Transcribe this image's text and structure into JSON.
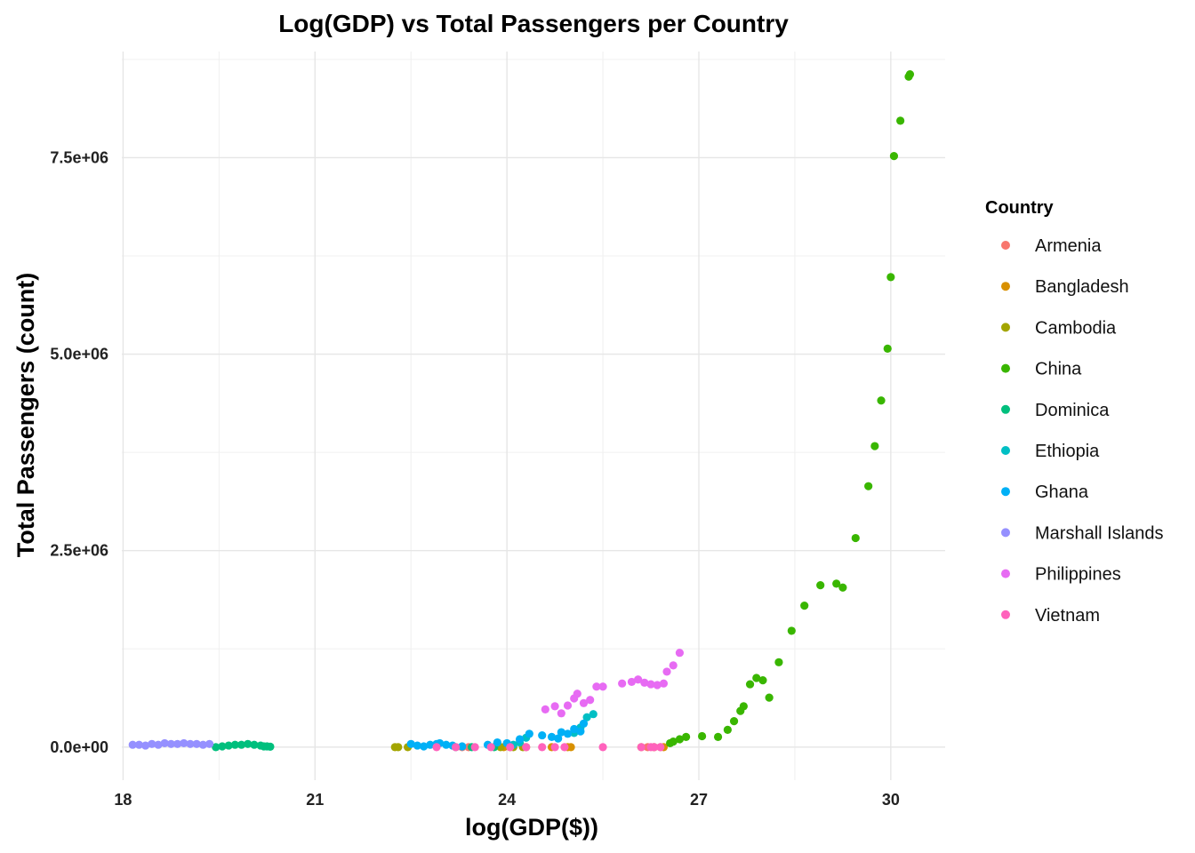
{
  "chart_data": {
    "type": "scatter",
    "title": "Log(GDP) vs Total Passengers per Country",
    "xlabel": "log(GDP($))",
    "ylabel": "Total Passengers (count)",
    "xlim": [
      17.98,
      30.85
    ],
    "ylim": [
      -420000,
      8850000
    ],
    "x_ticks": [
      18,
      21,
      24,
      27,
      30
    ],
    "x_tick_labels": [
      "18",
      "21",
      "24",
      "27",
      "30"
    ],
    "y_ticks": [
      0,
      2500000,
      5000000,
      7500000
    ],
    "y_tick_labels": [
      "0.0e+00",
      "2.5e+06",
      "5.0e+06",
      "7.5e+06"
    ],
    "grid": true,
    "legend": {
      "title": "Country",
      "position": "right"
    },
    "series": [
      {
        "name": "Armenia",
        "color": "#F8766D",
        "points": [
          [
            23.3,
            0
          ],
          [
            23.4,
            0
          ],
          [
            26.2,
            0
          ],
          [
            26.3,
            0
          ],
          [
            26.4,
            0
          ]
        ]
      },
      {
        "name": "Bangladesh",
        "color": "#D89000",
        "points": [
          [
            23.95,
            0
          ],
          [
            24.3,
            0
          ],
          [
            24.7,
            0
          ],
          [
            24.95,
            0
          ],
          [
            25.0,
            0
          ],
          [
            26.1,
            0
          ],
          [
            26.3,
            0
          ],
          [
            26.45,
            0
          ]
        ]
      },
      {
        "name": "Cambodia",
        "color": "#A3A500",
        "points": [
          [
            22.25,
            0
          ],
          [
            22.3,
            0
          ],
          [
            22.45,
            0
          ],
          [
            23.9,
            0
          ],
          [
            24.05,
            0
          ],
          [
            24.1,
            0
          ],
          [
            24.25,
            0
          ]
        ]
      },
      {
        "name": "China",
        "color": "#39B600",
        "points": [
          [
            26.55,
            50000
          ],
          [
            26.6,
            70000
          ],
          [
            26.7,
            100000
          ],
          [
            26.8,
            130000
          ],
          [
            27.05,
            140000
          ],
          [
            27.3,
            130000
          ],
          [
            27.45,
            220000
          ],
          [
            27.55,
            330000
          ],
          [
            27.65,
            460000
          ],
          [
            27.7,
            520000
          ],
          [
            27.8,
            800000
          ],
          [
            27.9,
            880000
          ],
          [
            28.0,
            850000
          ],
          [
            28.1,
            630000
          ],
          [
            28.25,
            1080000
          ],
          [
            28.45,
            1480000
          ],
          [
            28.65,
            1800000
          ],
          [
            28.9,
            2060000
          ],
          [
            29.15,
            2080000
          ],
          [
            29.25,
            2030000
          ],
          [
            29.45,
            2660000
          ],
          [
            29.65,
            3320000
          ],
          [
            29.75,
            3830000
          ],
          [
            29.85,
            4410000
          ],
          [
            29.95,
            5070000
          ],
          [
            30.0,
            5980000
          ],
          [
            30.05,
            7520000
          ],
          [
            30.15,
            7970000
          ],
          [
            30.28,
            8530000
          ],
          [
            30.3,
            8560000
          ]
        ]
      },
      {
        "name": "Dominica",
        "color": "#00BF7D",
        "points": [
          [
            19.45,
            0
          ],
          [
            19.55,
            10000
          ],
          [
            19.65,
            20000
          ],
          [
            19.75,
            30000
          ],
          [
            19.85,
            30000
          ],
          [
            19.95,
            40000
          ],
          [
            20.05,
            30000
          ],
          [
            20.15,
            20000
          ],
          [
            20.2,
            10000
          ],
          [
            20.25,
            10000
          ],
          [
            20.3,
            5000
          ],
          [
            23.2,
            0
          ],
          [
            23.45,
            0
          ],
          [
            23.8,
            0
          ]
        ]
      },
      {
        "name": "Ethiopia",
        "color": "#00BFC4",
        "points": [
          [
            24.1,
            30000
          ],
          [
            24.2,
            60000
          ],
          [
            24.3,
            120000
          ],
          [
            25.05,
            180000
          ],
          [
            25.15,
            250000
          ],
          [
            25.25,
            380000
          ],
          [
            25.35,
            420000
          ]
        ]
      },
      {
        "name": "Ghana",
        "color": "#00B0F6",
        "points": [
          [
            22.5,
            40000
          ],
          [
            22.6,
            20000
          ],
          [
            22.7,
            10000
          ],
          [
            22.8,
            30000
          ],
          [
            22.9,
            40000
          ],
          [
            22.95,
            50000
          ],
          [
            23.05,
            30000
          ],
          [
            23.15,
            20000
          ],
          [
            23.3,
            10000
          ],
          [
            23.7,
            30000
          ],
          [
            23.85,
            60000
          ],
          [
            24.0,
            50000
          ],
          [
            24.2,
            100000
          ],
          [
            24.35,
            170000
          ],
          [
            24.55,
            150000
          ],
          [
            24.7,
            130000
          ],
          [
            24.8,
            110000
          ],
          [
            24.85,
            190000
          ],
          [
            24.95,
            170000
          ],
          [
            25.05,
            230000
          ],
          [
            25.15,
            200000
          ],
          [
            25.2,
            300000
          ]
        ]
      },
      {
        "name": "Marshall Islands",
        "color": "#9590FF",
        "points": [
          [
            18.15,
            30000
          ],
          [
            18.25,
            30000
          ],
          [
            18.35,
            20000
          ],
          [
            18.45,
            40000
          ],
          [
            18.55,
            30000
          ],
          [
            18.65,
            50000
          ],
          [
            18.75,
            40000
          ],
          [
            18.85,
            40000
          ],
          [
            18.95,
            50000
          ],
          [
            19.05,
            40000
          ],
          [
            19.15,
            40000
          ],
          [
            19.25,
            30000
          ],
          [
            19.35,
            40000
          ]
        ]
      },
      {
        "name": "Philippines",
        "color": "#E76BF3",
        "points": [
          [
            24.6,
            480000
          ],
          [
            24.75,
            520000
          ],
          [
            24.85,
            430000
          ],
          [
            24.95,
            530000
          ],
          [
            25.05,
            620000
          ],
          [
            25.1,
            680000
          ],
          [
            25.2,
            560000
          ],
          [
            25.3,
            600000
          ],
          [
            25.4,
            770000
          ],
          [
            25.5,
            770000
          ],
          [
            25.8,
            810000
          ],
          [
            25.95,
            830000
          ],
          [
            26.05,
            860000
          ],
          [
            26.15,
            820000
          ],
          [
            26.25,
            800000
          ],
          [
            26.35,
            790000
          ],
          [
            26.45,
            810000
          ],
          [
            26.5,
            960000
          ],
          [
            26.6,
            1040000
          ],
          [
            26.7,
            1200000
          ]
        ]
      },
      {
        "name": "Vietnam",
        "color": "#FF62BC",
        "points": [
          [
            22.9,
            0
          ],
          [
            23.2,
            0
          ],
          [
            23.5,
            0
          ],
          [
            23.75,
            0
          ],
          [
            24.05,
            0
          ],
          [
            24.3,
            0
          ],
          [
            24.55,
            0
          ],
          [
            24.75,
            0
          ],
          [
            24.9,
            0
          ],
          [
            25.5,
            0
          ],
          [
            26.1,
            0
          ],
          [
            26.25,
            0
          ],
          [
            26.3,
            0
          ],
          [
            26.4,
            0
          ]
        ]
      }
    ]
  }
}
